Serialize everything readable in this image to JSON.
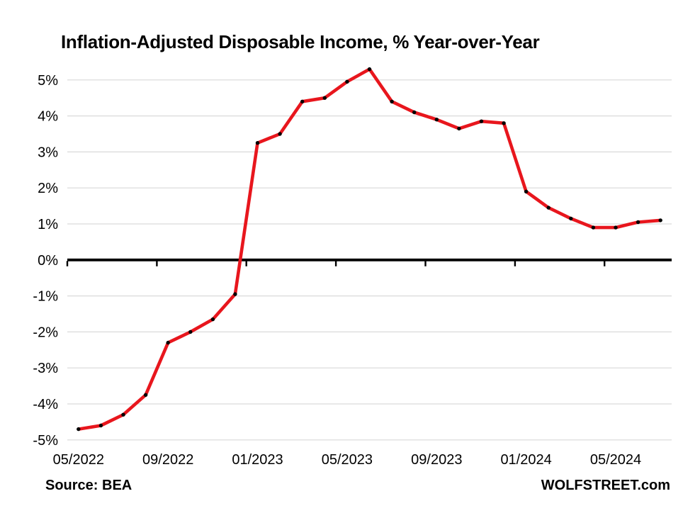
{
  "title": "Inflation-Adjusted Disposable Income, % Year-over-Year",
  "footer": {
    "source": "Source: BEA",
    "brand": "WOLFSTREET.com"
  },
  "colors": {
    "line": "#e8161d",
    "marker": "#000000",
    "grid": "#d9d9d9",
    "axis": "#000000",
    "text": "#000000",
    "background": "#ffffff"
  },
  "chart_data": {
    "type": "line",
    "title": "Inflation-Adjusted Disposable Income, % Year-over-Year",
    "x": [
      "05/2022",
      "06/2022",
      "07/2022",
      "08/2022",
      "09/2022",
      "10/2022",
      "11/2022",
      "12/2022",
      "01/2023",
      "02/2023",
      "03/2023",
      "04/2023",
      "05/2023",
      "06/2023",
      "07/2023",
      "08/2023",
      "09/2023",
      "10/2023",
      "11/2023",
      "12/2023",
      "01/2024",
      "02/2024",
      "03/2024",
      "04/2024",
      "05/2024",
      "06/2024",
      "07/2024"
    ],
    "series": [
      {
        "name": "Inflation-adjusted disposable income, % year-over-year",
        "values": [
          -4.7,
          -4.6,
          -4.3,
          -3.75,
          -2.3,
          -2.0,
          -1.65,
          -0.95,
          3.25,
          3.5,
          4.4,
          4.5,
          4.95,
          5.3,
          4.4,
          4.1,
          3.9,
          3.65,
          3.85,
          3.8,
          1.9,
          1.45,
          1.15,
          0.9,
          0.9,
          1.05,
          1.1
        ]
      }
    ],
    "ylim": [
      -5,
      5
    ],
    "ytick_values": [
      5,
      4,
      3,
      2,
      1,
      0,
      -1,
      -2,
      -3,
      -4,
      -5
    ],
    "ytick_labels": [
      "5%",
      "4%",
      "3%",
      "2%",
      "1%",
      "0%",
      "-1%",
      "-2%",
      "-3%",
      "-4%",
      "-5%"
    ],
    "xtick_indices": [
      0,
      4,
      8,
      12,
      16,
      20,
      24
    ],
    "xtick_labels": [
      "05/2022",
      "09/2022",
      "01/2023",
      "05/2023",
      "09/2023",
      "01/2024",
      "05/2024"
    ],
    "xlabel": "",
    "ylabel": "",
    "grid": true,
    "legend": false
  }
}
